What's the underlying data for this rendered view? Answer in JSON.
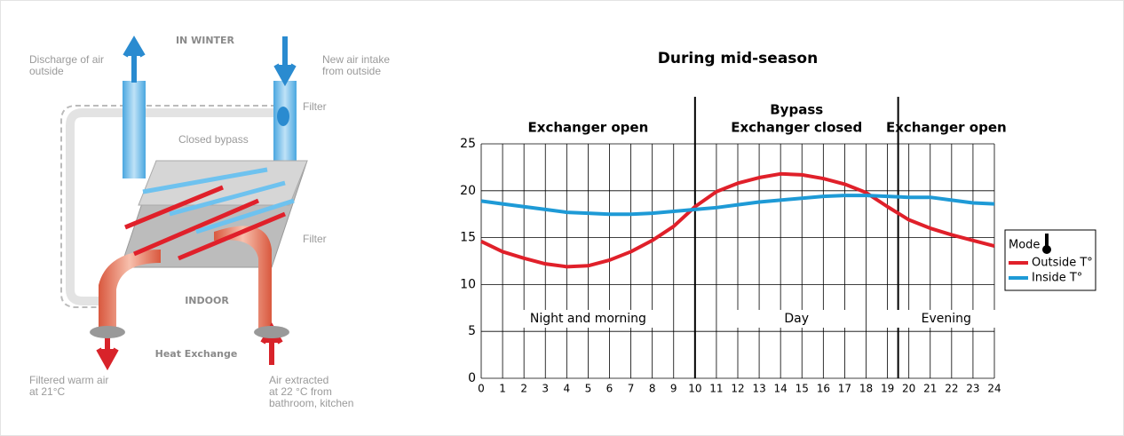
{
  "diagram": {
    "title": "IN WINTER",
    "discharge": [
      "Discharge of air",
      "outside"
    ],
    "intake": [
      "New air intake",
      "from outside"
    ],
    "filter_top": "Filter",
    "bypass": "Closed bypass",
    "filter_mid": "Filter",
    "indoor": "INDOOR",
    "heat_exchange": "Heat Exchange",
    "warm_air": [
      "Filtered warm air",
      "at 21°C"
    ],
    "extracted": [
      "Air extracted",
      "at 22 °C from",
      "bathroom, kitchen"
    ]
  },
  "chart_data": {
    "type": "line",
    "title": "During mid-season",
    "x": [
      0,
      1,
      2,
      3,
      4,
      5,
      6,
      7,
      8,
      9,
      10,
      11,
      12,
      13,
      14,
      15,
      16,
      17,
      18,
      19,
      20,
      21,
      22,
      23,
      24
    ],
    "series": [
      {
        "name": "Outside T°",
        "color": "#e0202a",
        "values": [
          14.6,
          13.5,
          12.8,
          12.2,
          11.9,
          12.0,
          12.6,
          13.5,
          14.7,
          16.2,
          18.3,
          19.9,
          20.8,
          21.4,
          21.8,
          21.7,
          21.3,
          20.7,
          19.8,
          18.3,
          16.9,
          16.0,
          15.3,
          14.7,
          14.1
        ]
      },
      {
        "name": "Inside T°",
        "color": "#1e9ad6",
        "values": [
          18.9,
          18.6,
          18.3,
          18.0,
          17.7,
          17.6,
          17.5,
          17.5,
          17.6,
          17.8,
          18.0,
          18.2,
          18.5,
          18.8,
          19.0,
          19.2,
          19.4,
          19.5,
          19.5,
          19.4,
          19.3,
          19.3,
          19.0,
          18.7,
          18.6
        ]
      }
    ],
    "xlim": [
      0,
      24
    ],
    "ylim": [
      0,
      25
    ],
    "xticks": [
      0,
      1,
      2,
      3,
      4,
      5,
      6,
      7,
      8,
      9,
      10,
      11,
      12,
      13,
      14,
      15,
      16,
      17,
      18,
      19,
      20,
      21,
      22,
      23,
      24
    ],
    "yticks": [
      0,
      5,
      10,
      15,
      20,
      25
    ],
    "grid": true,
    "section_boundaries": [
      10,
      19.5
    ],
    "sections": [
      [
        "Exchanger open"
      ],
      [
        "Bypass",
        "Exchanger closed"
      ],
      [
        "Exchanger open"
      ]
    ],
    "periods": [
      "Night and morning",
      "Day",
      "Evening"
    ],
    "legend_title": "Mode",
    "legend": "right"
  }
}
